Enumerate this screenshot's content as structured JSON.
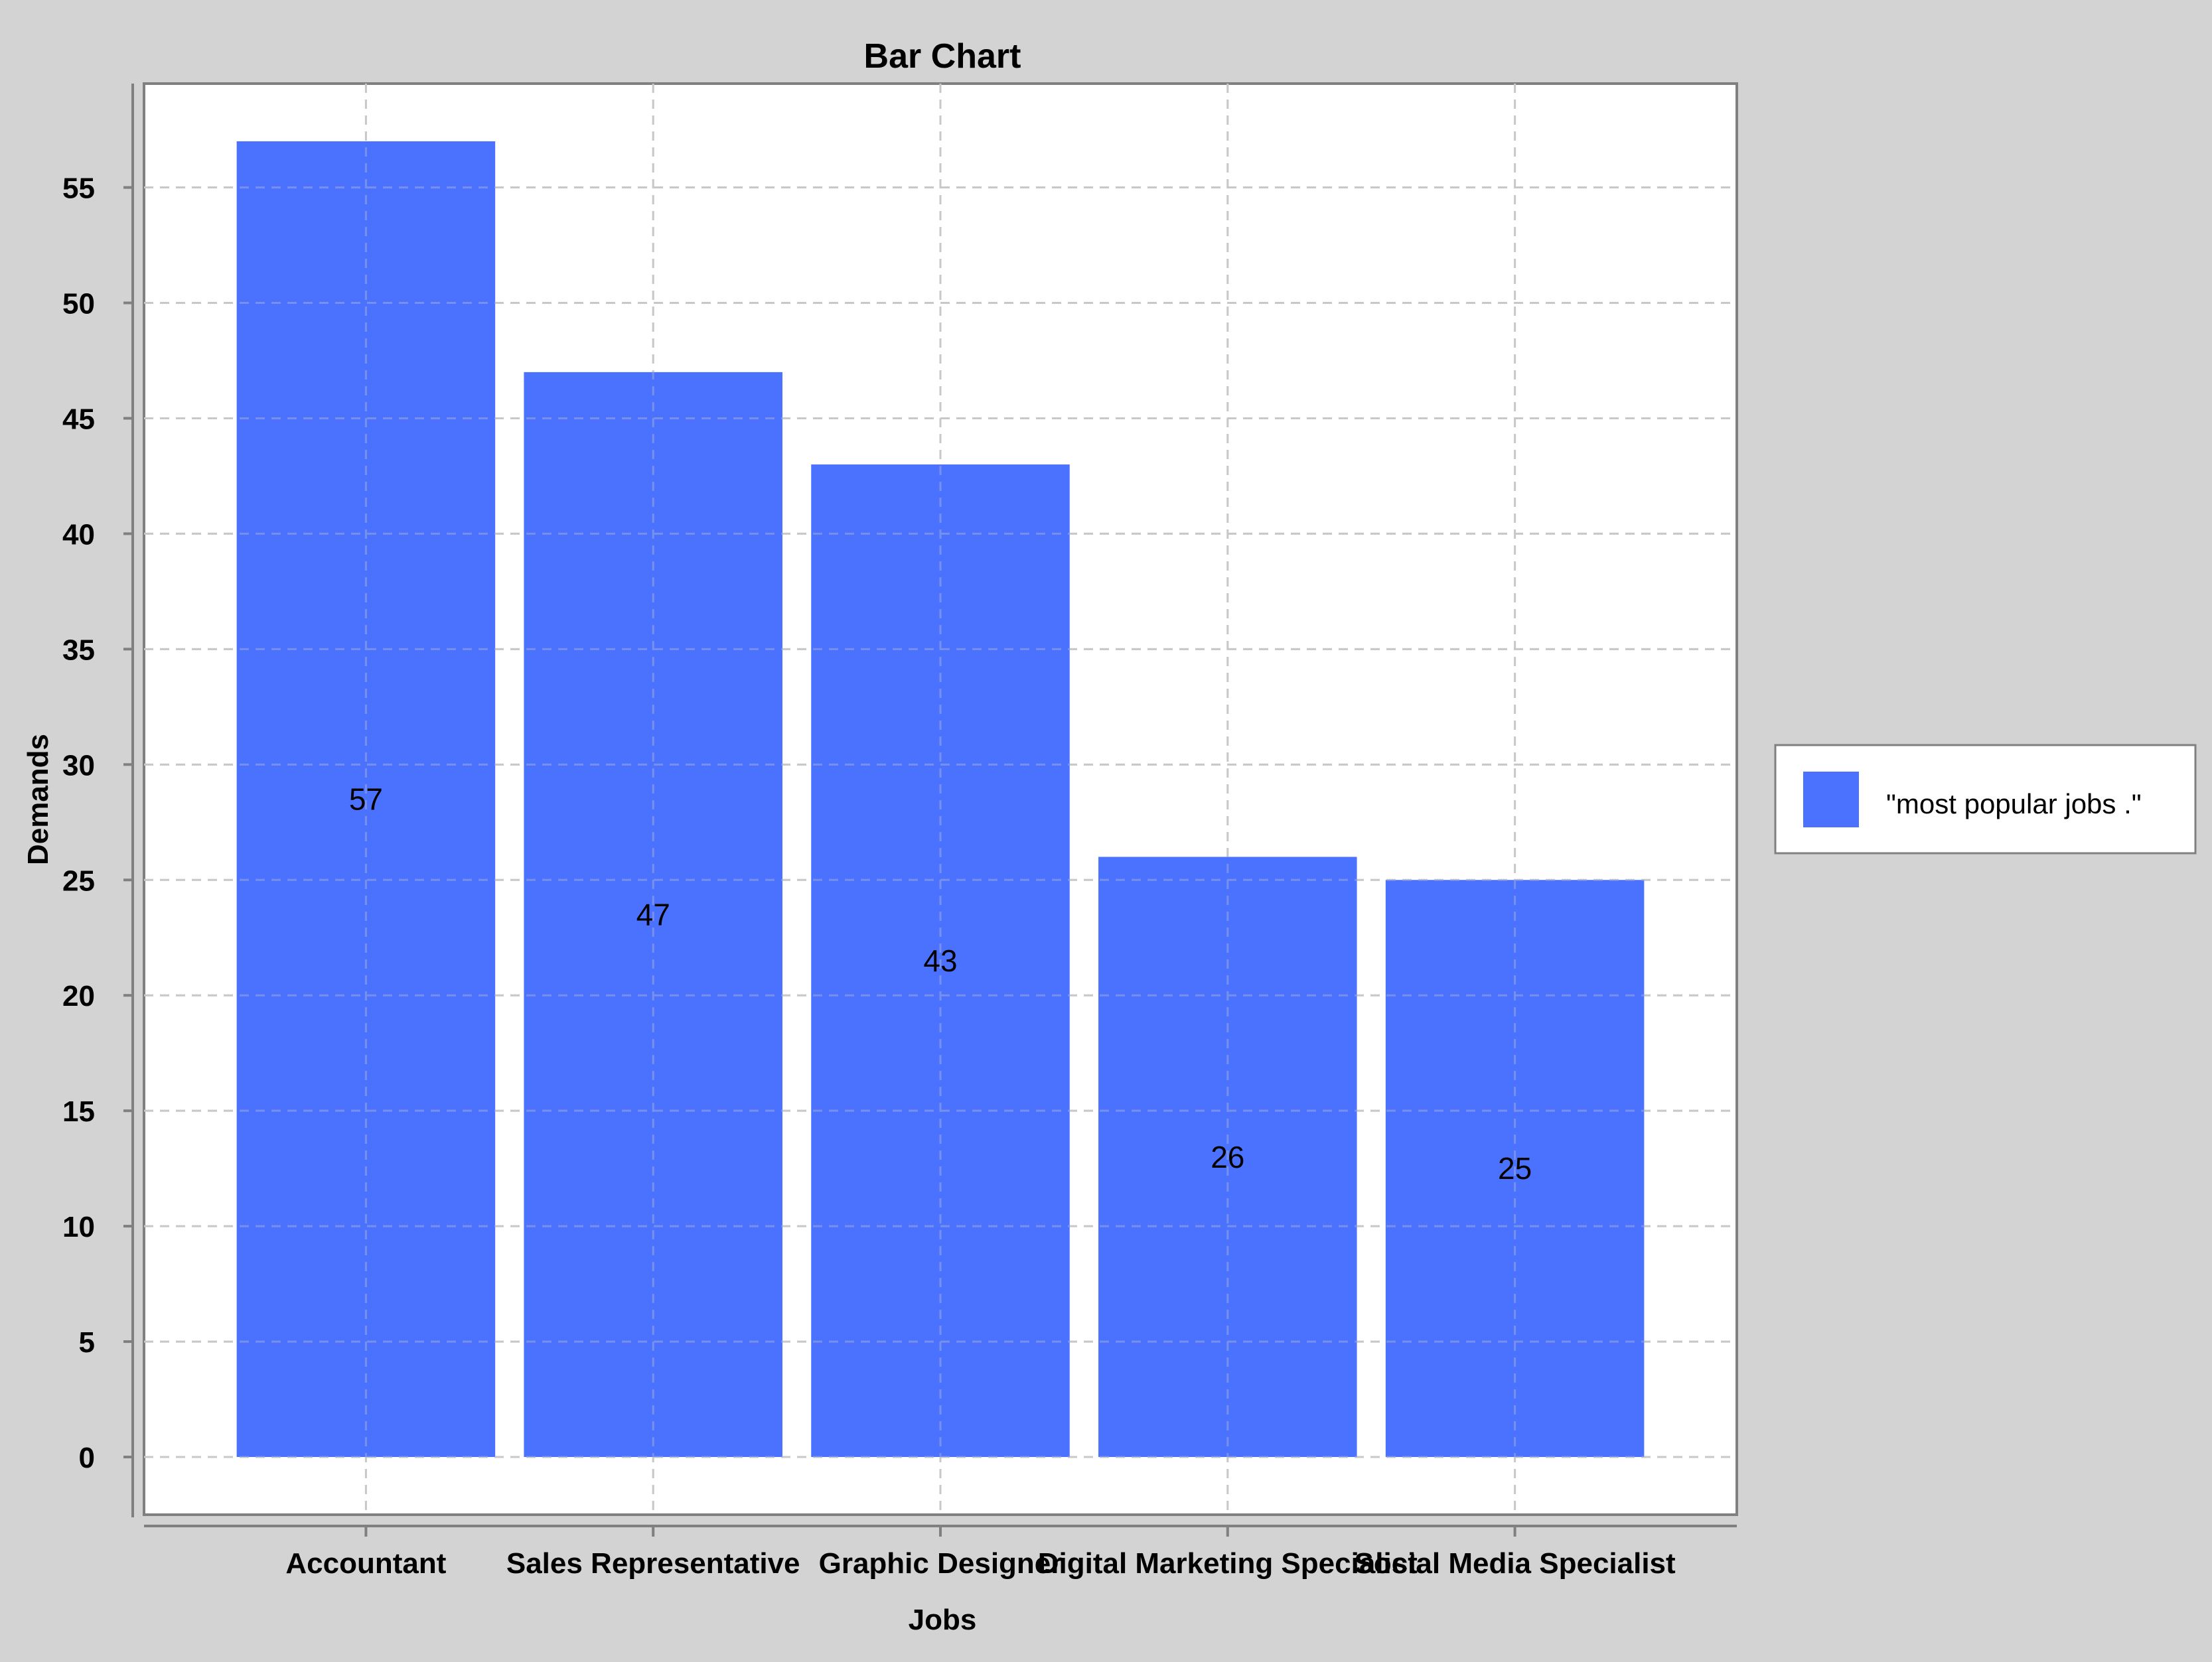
{
  "chart_data": {
    "type": "bar",
    "title": "Bar Chart",
    "xlabel": "Jobs",
    "ylabel": "Demands",
    "categories": [
      "Accountant",
      "Sales Representative",
      "Graphic Designer",
      "Digital Marketing Specialist",
      "Social Media Specialist"
    ],
    "series": [
      {
        "name": "\"most popular jobs .\"",
        "values": [
          57,
          47,
          43,
          26,
          25
        ],
        "color": "#4a72ff"
      }
    ],
    "ylim": [
      -2.5,
      59.5
    ],
    "yticks": [
      0,
      5,
      10,
      15,
      20,
      25,
      30,
      35,
      40,
      45,
      50,
      55
    ],
    "grid": true,
    "legend_position": "right",
    "colors": {
      "background": "#d3d3d3",
      "plot_background": "#ffffff",
      "bar": "#4a72ff"
    }
  }
}
